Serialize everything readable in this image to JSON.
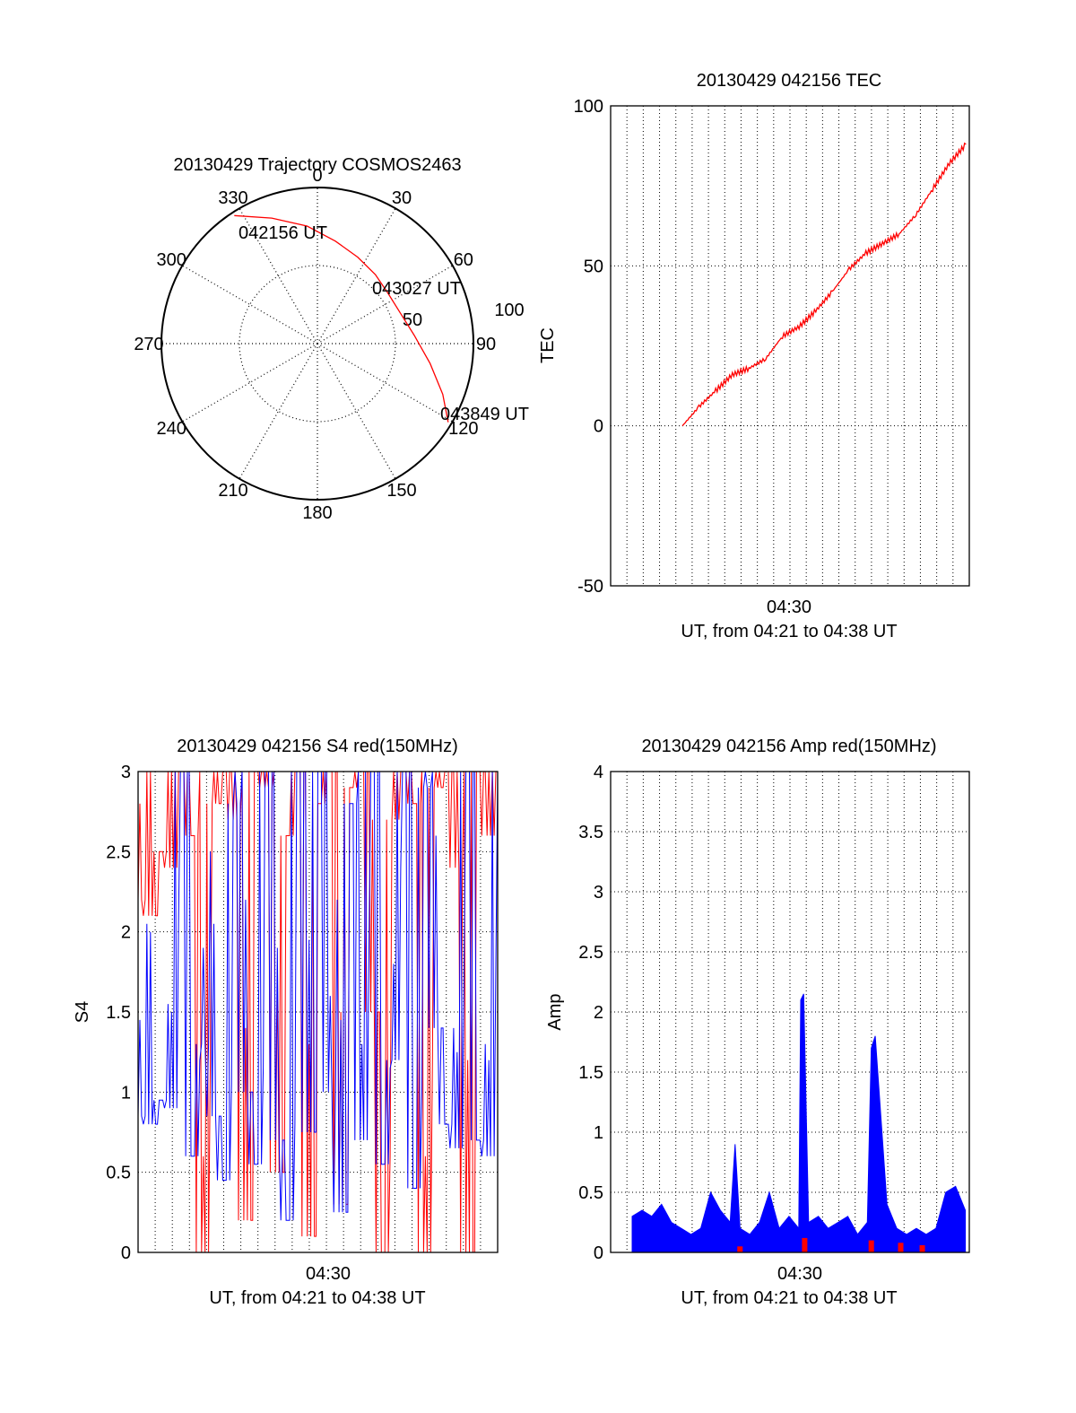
{
  "chart_data": [
    {
      "type": "polar",
      "title": "20130429 Trajectory COSMOS2463",
      "azimuth_labels": [
        "0",
        "30",
        "60",
        "90",
        "120",
        "150",
        "180",
        "210",
        "240",
        "270",
        "300",
        "330"
      ],
      "radial_labels": [
        "50",
        "100"
      ],
      "elevation_range": [
        0,
        100
      ],
      "annotations": [
        "042156 UT",
        "043027 UT",
        "043849 UT"
      ],
      "series": [
        {
          "color": "#ff0000",
          "points": [
            {
              "az": 327,
              "el": 2
            },
            {
              "az": 340,
              "el": 13
            },
            {
              "az": 355,
              "el": 22
            },
            {
              "az": 10,
              "el": 30
            },
            {
              "az": 25,
              "el": 35
            },
            {
              "az": 40,
              "el": 38
            },
            {
              "az": 55,
              "el": 40
            },
            {
              "az": 70,
              "el": 39
            },
            {
              "az": 85,
              "el": 34
            },
            {
              "az": 100,
              "el": 24
            },
            {
              "az": 112,
              "el": 12
            },
            {
              "az": 121,
              "el": 2
            }
          ]
        }
      ]
    },
    {
      "type": "line",
      "title": "20130429 042156 TEC",
      "ylabel": "TEC",
      "xlabel": "UT, from 04:21 to 04:38 UT",
      "x_tick_labels": [
        "04:30"
      ],
      "y_tick_labels": [
        "-50",
        "0",
        "50",
        "100"
      ],
      "xlim_minutes": [
        -4.3,
        17.2
      ],
      "ylim": [
        -50,
        100
      ],
      "grid": true,
      "series": [
        {
          "color": "#ff0000",
          "x": [
            0,
            1,
            2,
            3,
            4,
            5,
            6,
            7,
            8,
            9,
            10,
            11,
            12,
            13,
            14,
            15,
            16,
            17
          ],
          "y": [
            0,
            6,
            11,
            16,
            18,
            21,
            28,
            31,
            36,
            42,
            49,
            54,
            57,
            60,
            66,
            74,
            82,
            88
          ]
        }
      ]
    },
    {
      "type": "line",
      "title": "20130429 042156 S4 red(150MHz)",
      "ylabel": "S4",
      "xlabel": "UT, from 04:21 to 04:38 UT",
      "x_tick_labels": [
        "04:30"
      ],
      "y_tick_labels": [
        "0",
        "0.5",
        "1",
        "1.5",
        "2",
        "2.5",
        "3"
      ],
      "xlim_minutes": [
        0,
        17
      ],
      "ylim": [
        0,
        3
      ],
      "grid": true,
      "series": [
        {
          "color": "#ff0000",
          "x": [
            0,
            0.5,
            1,
            1.5,
            2,
            2.5,
            3,
            3.5,
            4,
            4.5,
            5,
            5.5,
            6,
            6.5,
            7,
            7.5,
            8,
            8.5,
            9,
            9.5,
            10,
            10.5,
            11,
            11.5,
            12,
            12.5,
            13,
            13.5,
            14,
            14.5,
            15,
            15.5,
            16,
            16.5,
            17
          ],
          "y": [
            2.2,
            2.1,
            2.5,
            2.4,
            3,
            2.6,
            0,
            2.8,
            3,
            2.7,
            0.2,
            3,
            2.9,
            0.5,
            2.6,
            3,
            0.1,
            2.8,
            3,
            0.3,
            2.9,
            3,
            1.5,
            0,
            2.7,
            3,
            2.8,
            0,
            2.9,
            3,
            2.4,
            0,
            3,
            2.6,
            3
          ]
        },
        {
          "color": "#0000ff",
          "x": [
            0,
            0.5,
            1,
            1.5,
            2,
            2.5,
            3,
            3.5,
            4,
            4.5,
            5,
            5.5,
            6,
            6.5,
            7,
            7.5,
            8,
            8.5,
            9,
            9.5,
            10,
            10.5,
            11,
            11.5,
            12,
            12.5,
            13,
            13.5,
            14,
            14.5,
            15,
            15.5,
            16,
            16.5,
            17
          ],
          "y": [
            0.85,
            0.8,
            0.95,
            0.9,
            3,
            0.6,
            1.3,
            0.85,
            0.45,
            2.8,
            1,
            0.55,
            3,
            0.7,
            0.2,
            3,
            0.75,
            3,
            1,
            0.25,
            2.8,
            0.7,
            3,
            0.55,
            1.2,
            3,
            0.4,
            2.9,
            1.4,
            0.8,
            0.65,
            3,
            0.7,
            0.6,
            3
          ]
        }
      ]
    },
    {
      "type": "area",
      "title": "20130429 042156 Amp red(150MHz)",
      "ylabel": "Amp",
      "xlabel": "UT, from 04:21 to 04:38 UT",
      "x_tick_labels": [
        "04:30"
      ],
      "y_tick_labels": [
        "0",
        "0.5",
        "1",
        "1.5",
        "2",
        "2.5",
        "3",
        "3.5",
        "4"
      ],
      "xlim_minutes": [
        -1.1,
        17.2
      ],
      "ylim": [
        0,
        4
      ],
      "grid": true,
      "series": [
        {
          "color": "#0000ff",
          "x": [
            0,
            0.5,
            1,
            1.5,
            2,
            2.5,
            3,
            3.5,
            4,
            4.5,
            5,
            5.25,
            5.5,
            6,
            6.5,
            7,
            7.5,
            8,
            8.5,
            8.6,
            8.75,
            9,
            9.5,
            10,
            10.5,
            11,
            11.5,
            12,
            12.2,
            12.4,
            13,
            13.5,
            14,
            14.5,
            15,
            15.5,
            16,
            16.5,
            17
          ],
          "y": [
            0.3,
            0.35,
            0.3,
            0.4,
            0.25,
            0.2,
            0.15,
            0.2,
            0.5,
            0.35,
            0.25,
            0.9,
            0.2,
            0.15,
            0.25,
            0.5,
            0.2,
            0.3,
            0.2,
            2.1,
            2.15,
            0.25,
            0.3,
            0.2,
            0.25,
            0.3,
            0.15,
            0.25,
            1.7,
            1.8,
            0.4,
            0.2,
            0.15,
            0.2,
            0.15,
            0.2,
            0.5,
            0.55,
            0.35
          ]
        },
        {
          "color": "#ff0000",
          "x": [
            5.5,
            8.8,
            12.2,
            13.7,
            14.8
          ],
          "y": [
            0.05,
            0.12,
            0.1,
            0.08,
            0.06
          ]
        }
      ]
    }
  ]
}
